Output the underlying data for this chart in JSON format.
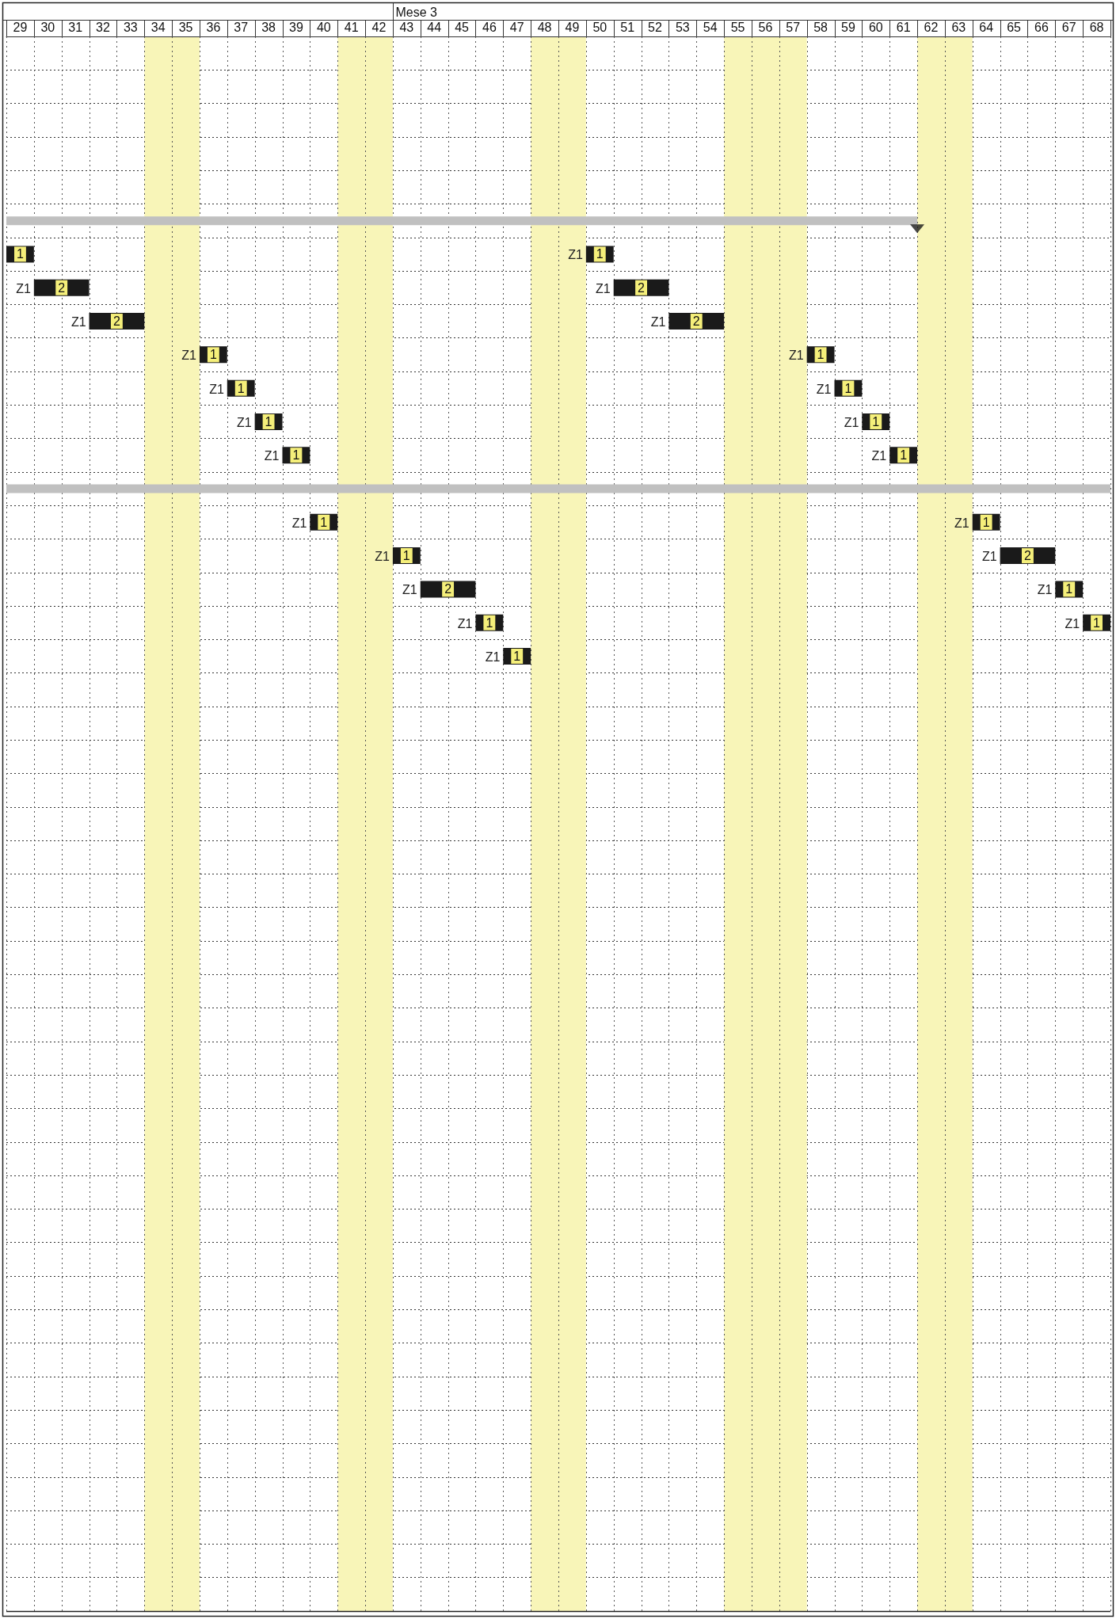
{
  "chart_data": {
    "type": "bar",
    "orientation": "horizontal",
    "grid": true,
    "categories": [
      null,
      null,
      null,
      null,
      null,
      null,
      null,
      null,
      null,
      null,
      null,
      null,
      null,
      null,
      null,
      null,
      null,
      null,
      null,
      null,
      null,
      null,
      null,
      null,
      null,
      null,
      null,
      null,
      null,
      null,
      null,
      null,
      null,
      null,
      null,
      null,
      null,
      null,
      null,
      null,
      null,
      null,
      null,
      null,
      null,
      null,
      null
    ],
    "xlim": [
      28.5,
      68.5
    ],
    "xticks": [
      29,
      30,
      31,
      32,
      33,
      34,
      35,
      36,
      37,
      38,
      39,
      40,
      41,
      42,
      43,
      44,
      45,
      46,
      47,
      48,
      49,
      50,
      51,
      52,
      53,
      54,
      55,
      56,
      57,
      58,
      59,
      60,
      61,
      62,
      63,
      64,
      65,
      66,
      67,
      68
    ],
    "annotations": [
      "Mese 3"
    ],
    "bands": [
      {
        "axis": "x",
        "from": 33.5,
        "to": 35.5,
        "color": "#f8f5b8"
      },
      {
        "axis": "x",
        "from": 40.5,
        "to": 42.5,
        "color": "#f8f5b8"
      },
      {
        "axis": "x",
        "from": 47.5,
        "to": 49.5,
        "color": "#f8f5b8"
      },
      {
        "axis": "x",
        "from": 54.5,
        "to": 57.5,
        "color": "#f8f5b8"
      },
      {
        "axis": "x",
        "from": 61.5,
        "to": 63.5,
        "color": "#f8f5b8"
      }
    ],
    "series": [
      {
        "color": "#c0c0c0",
        "base": [
          null,
          null,
          null,
          null,
          null,
          28.5,
          null,
          null,
          null,
          null,
          null,
          null,
          null,
          28.5,
          null,
          null,
          null,
          null,
          null,
          null,
          null,
          null,
          null,
          null,
          null,
          null,
          null,
          null,
          null,
          null,
          null,
          null,
          null,
          null,
          null,
          null,
          null,
          null,
          null,
          null,
          null,
          null,
          null,
          null,
          null,
          null,
          null
        ],
        "values": [
          null,
          null,
          null,
          null,
          null,
          33,
          null,
          null,
          null,
          null,
          null,
          null,
          null,
          40,
          null,
          null,
          null,
          null,
          null,
          null,
          null,
          null,
          null,
          null,
          null,
          null,
          null,
          null,
          null,
          null,
          null,
          null,
          null,
          null,
          null,
          null,
          null,
          null,
          null,
          null,
          null,
          null,
          null,
          null,
          null,
          null,
          null
        ]
      },
      {
        "name": "Z1",
        "color": "#1a1a1a",
        "base": [
          null,
          null,
          null,
          null,
          null,
          null,
          28.5,
          29.5,
          31.5,
          35.5,
          36.5,
          37.5,
          38.5,
          null,
          39.5,
          42.5,
          43.5,
          45.5,
          46.5,
          null,
          null,
          null,
          null,
          null,
          null,
          null,
          null,
          null,
          null,
          null,
          null,
          null,
          null,
          null,
          null,
          null,
          null,
          null,
          null,
          null,
          null,
          null,
          null,
          null,
          null,
          null,
          null
        ],
        "values": [
          null,
          null,
          null,
          null,
          null,
          null,
          1,
          2,
          2,
          1,
          1,
          1,
          1,
          null,
          1,
          1,
          2,
          1,
          1,
          null,
          null,
          null,
          null,
          null,
          null,
          null,
          null,
          null,
          null,
          null,
          null,
          null,
          null,
          null,
          null,
          null,
          null,
          null,
          null,
          null,
          null,
          null,
          null,
          null,
          null,
          null,
          null
        ],
        "value_labels": [
          null,
          null,
          null,
          null,
          null,
          null,
          "1",
          "2",
          "2",
          "1",
          "1",
          "1",
          "1",
          null,
          "1",
          "1",
          "2",
          "1",
          "1",
          null,
          null,
          null,
          null,
          null,
          null,
          null,
          null,
          null,
          null,
          null,
          null,
          null,
          null,
          null,
          null,
          null,
          null,
          null,
          null,
          null,
          null,
          null,
          null,
          null,
          null,
          null,
          null
        ]
      },
      {
        "name": "Z1",
        "color": "#1a1a1a",
        "base": [
          null,
          null,
          null,
          null,
          null,
          null,
          49.5,
          50.5,
          52.5,
          57.5,
          58.5,
          59.5,
          60.5,
          null,
          63.5,
          64.5,
          66.5,
          67.5,
          null,
          null,
          null,
          null,
          null,
          null,
          null,
          null,
          null,
          null,
          null,
          null,
          null,
          null,
          null,
          null,
          null,
          null,
          null,
          null,
          null,
          null,
          null,
          null,
          null,
          null,
          null,
          null,
          null
        ],
        "values": [
          null,
          null,
          null,
          null,
          null,
          null,
          1,
          2,
          2,
          1,
          1,
          1,
          1,
          null,
          1,
          2,
          1,
          1,
          null,
          null,
          null,
          null,
          null,
          null,
          null,
          null,
          null,
          null,
          null,
          null,
          null,
          null,
          null,
          null,
          null,
          null,
          null,
          null,
          null,
          null,
          null,
          null,
          null,
          null,
          null,
          null,
          null
        ],
        "value_labels": [
          null,
          null,
          null,
          null,
          null,
          null,
          "1",
          "2",
          "2",
          "1",
          "1",
          "1",
          "1",
          null,
          "1",
          "2",
          "1",
          "1",
          null,
          null,
          null,
          null,
          null,
          null,
          null,
          null,
          null,
          null,
          null,
          null,
          null,
          null,
          null,
          null,
          null,
          null,
          null,
          null,
          null,
          null,
          null,
          null,
          null,
          null,
          null,
          null,
          null
        ]
      },
      {
        "type": "scatter",
        "marker": "triangle",
        "color": "#1a1a1a",
        "values": [
          null,
          null,
          null,
          null,
          null,
          61.5,
          null,
          null,
          null,
          null,
          null,
          null,
          null,
          null,
          null,
          null,
          null,
          null,
          null,
          null,
          null,
          null,
          null,
          null,
          null,
          null,
          null,
          null,
          null,
          null,
          null,
          null,
          null,
          null,
          null,
          null,
          null,
          null,
          null,
          null,
          null,
          null,
          null,
          null,
          null,
          null,
          null
        ]
      }
    ]
  }
}
